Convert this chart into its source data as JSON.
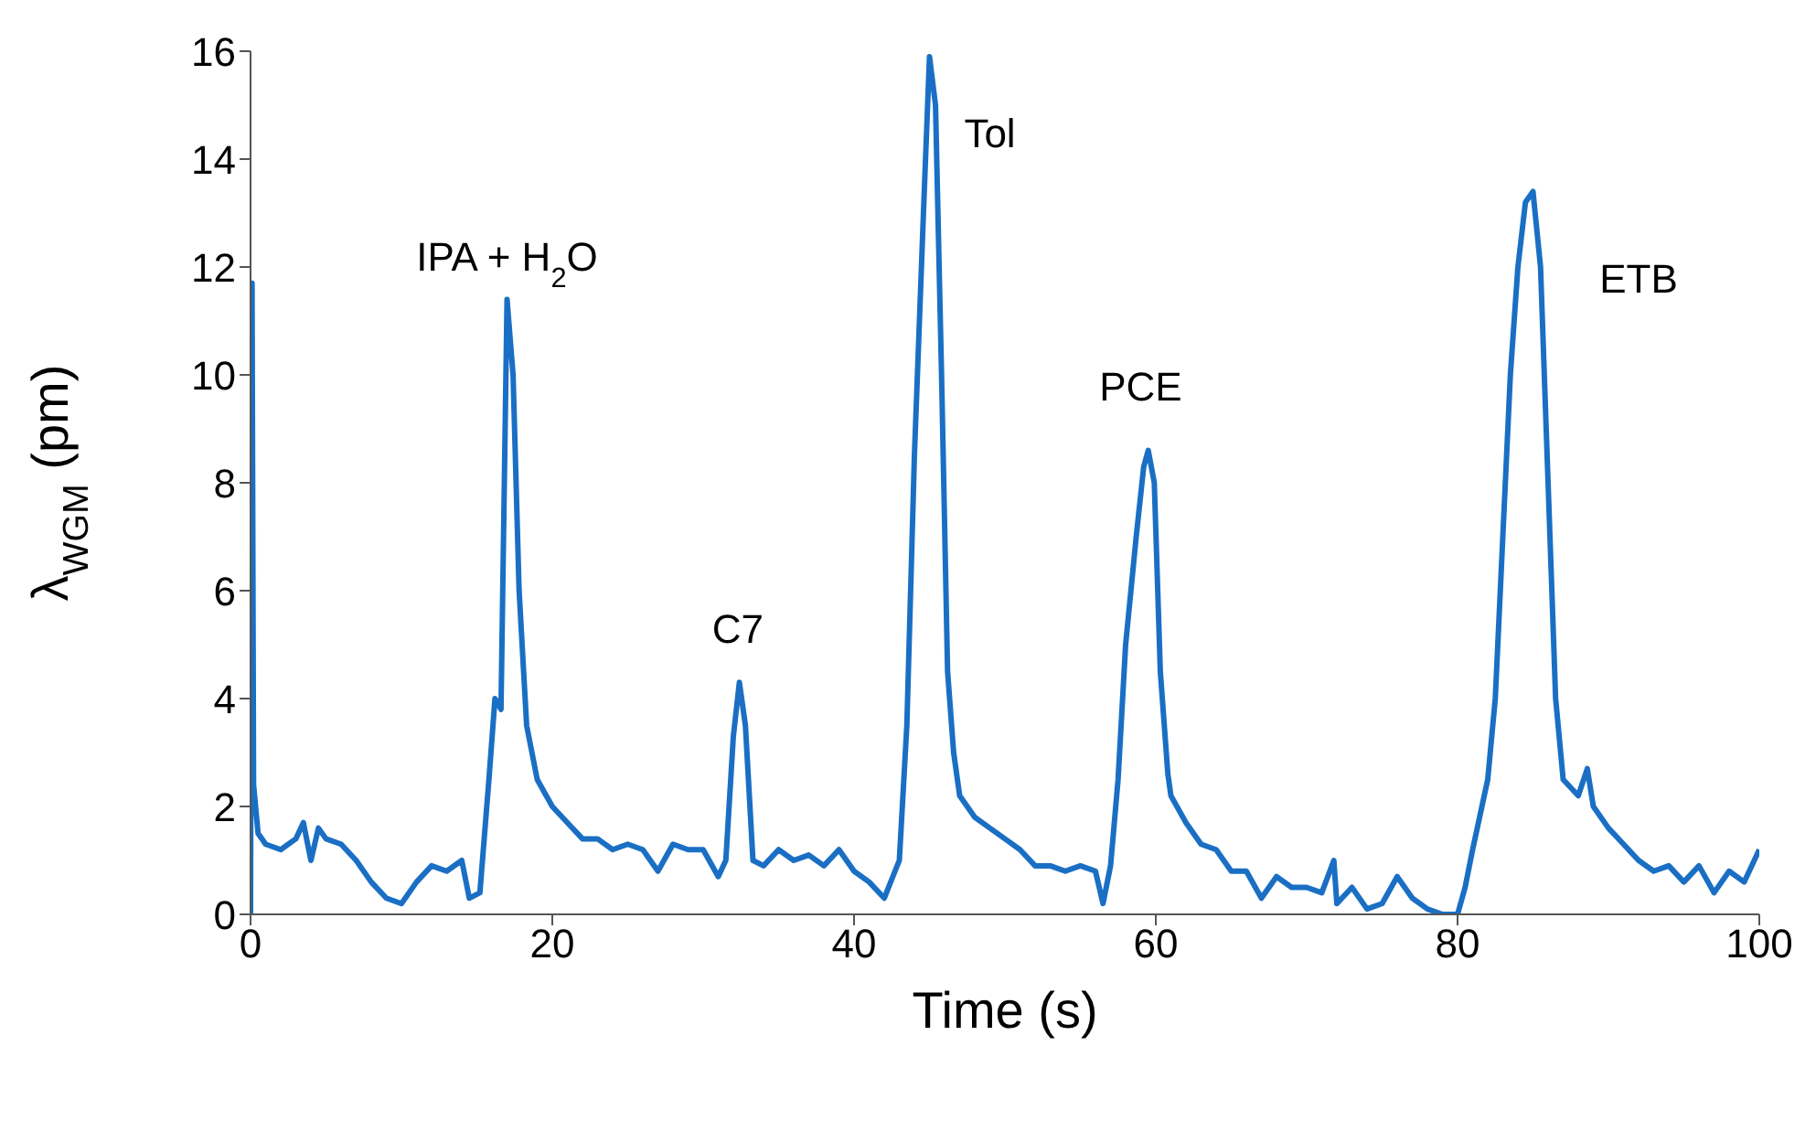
{
  "chart_data": {
    "type": "line",
    "xlabel": "Time (s)",
    "ylabel": "λ$_{WGM}$ (pm)",
    "xlim": [
      0,
      100
    ],
    "xticks": [
      0,
      20,
      40,
      60,
      80,
      100
    ],
    "ylim": [
      0,
      16
    ],
    "yticks": [
      0,
      2,
      4,
      6,
      8,
      10,
      12,
      14,
      16
    ],
    "grid": false,
    "legend": false,
    "marker": "none",
    "line_style": "solid",
    "series": [
      {
        "color": "#1a6fc4",
        "x": [
          0,
          0.1,
          0.2,
          0.5,
          1,
          2,
          3,
          3.5,
          4,
          4.5,
          5,
          6,
          7,
          8,
          9,
          10,
          11,
          12,
          13,
          14,
          14.5,
          15.2,
          15.8,
          16.2,
          16.6,
          17,
          17.4,
          17.8,
          18.3,
          19,
          20,
          21,
          22,
          23,
          24,
          25,
          26,
          27,
          28,
          29,
          30,
          31,
          31.5,
          32,
          32.4,
          32.8,
          33.3,
          34,
          35,
          36,
          37,
          38,
          39,
          40,
          41,
          42,
          43,
          43.5,
          44,
          44.6,
          45,
          45.4,
          45.8,
          46.2,
          46.6,
          47,
          48,
          49,
          50,
          51,
          52,
          53,
          54,
          55,
          56,
          56.5,
          57,
          57.5,
          58,
          58.7,
          59.2,
          59.5,
          59.9,
          60.3,
          60.8,
          61,
          62,
          63,
          64,
          65,
          66,
          67,
          68,
          69,
          70,
          71,
          71.8,
          72,
          73,
          74,
          75,
          76,
          77,
          78,
          79,
          80,
          80.5,
          81,
          82,
          82.5,
          83,
          83.5,
          84,
          84.5,
          85,
          85.5,
          86,
          86.5,
          87,
          88,
          88.6,
          89,
          90,
          91,
          92,
          93,
          94,
          95,
          96,
          97,
          98,
          99,
          100
        ],
        "values": [
          0,
          11.7,
          2.4,
          1.5,
          1.3,
          1.2,
          1.4,
          1.7,
          1.0,
          1.6,
          1.4,
          1.3,
          1.0,
          0.6,
          0.3,
          0.2,
          0.6,
          0.9,
          0.8,
          1.0,
          0.3,
          0.4,
          2.5,
          4.0,
          3.8,
          11.4,
          10,
          6,
          3.5,
          2.5,
          2.0,
          1.7,
          1.4,
          1.4,
          1.2,
          1.3,
          1.2,
          0.8,
          1.3,
          1.2,
          1.2,
          0.7,
          1.0,
          3.3,
          4.3,
          3.5,
          1.0,
          0.9,
          1.2,
          1.0,
          1.1,
          0.9,
          1.2,
          0.8,
          0.6,
          0.3,
          1.0,
          3.5,
          8.5,
          13,
          15.9,
          15,
          10,
          4.5,
          3.0,
          2.2,
          1.8,
          1.6,
          1.4,
          1.2,
          0.9,
          0.9,
          0.8,
          0.9,
          0.8,
          0.2,
          0.9,
          2.5,
          5,
          7.0,
          8.3,
          8.6,
          8.0,
          4.5,
          2.6,
          2.2,
          1.7,
          1.3,
          1.2,
          0.8,
          0.8,
          0.3,
          0.7,
          0.5,
          0.5,
          0.4,
          1.0,
          0.2,
          0.5,
          0.1,
          0.2,
          0.7,
          0.3,
          0.1,
          0,
          0,
          0.5,
          1.2,
          2.5,
          4,
          7,
          10,
          12,
          13.2,
          13.4,
          12,
          8,
          4,
          2.5,
          2.2,
          2.7,
          2.0,
          1.6,
          1.3,
          1.0,
          0.8,
          0.9,
          0.6,
          0.9,
          0.4,
          0.8,
          0.6,
          1.2
        ]
      }
    ],
    "annotations": [
      "IPA + H$_{2}$O",
      "C7",
      "Tol",
      "PCE",
      "ETB"
    ]
  }
}
